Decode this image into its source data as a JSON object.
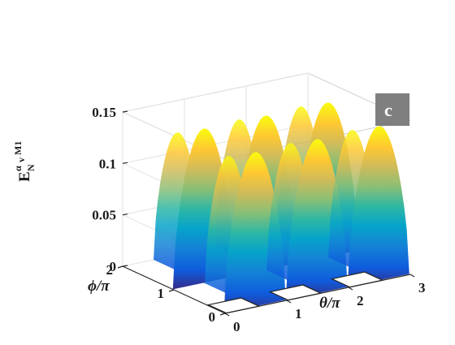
{
  "chart_data": {
    "type": "surface3d",
    "panel_label": "c",
    "z_axis": {
      "label": {
        "main": "E",
        "sub": "N",
        "sup": "α",
        "subsub": "v",
        "tail": "M1"
      },
      "ticks": [
        "0",
        "0.05",
        "0.1",
        "0.15"
      ],
      "tick_values": [
        0,
        0.05,
        0.1,
        0.15
      ],
      "range": [
        0,
        0.15
      ]
    },
    "x_axis": {
      "label": "θ/π",
      "ticks": [
        "0",
        "1",
        "2",
        "3"
      ],
      "tick_values": [
        0,
        1,
        2,
        3
      ],
      "range": [
        0,
        3
      ]
    },
    "y_axis": {
      "label": "ϕ/π",
      "ticks": [
        "0",
        "1",
        "2"
      ],
      "tick_values": [
        0,
        1,
        2
      ],
      "range": [
        0,
        2
      ]
    },
    "z_max": 0.15,
    "colormap": "parula",
    "grid": true,
    "box": true
  }
}
